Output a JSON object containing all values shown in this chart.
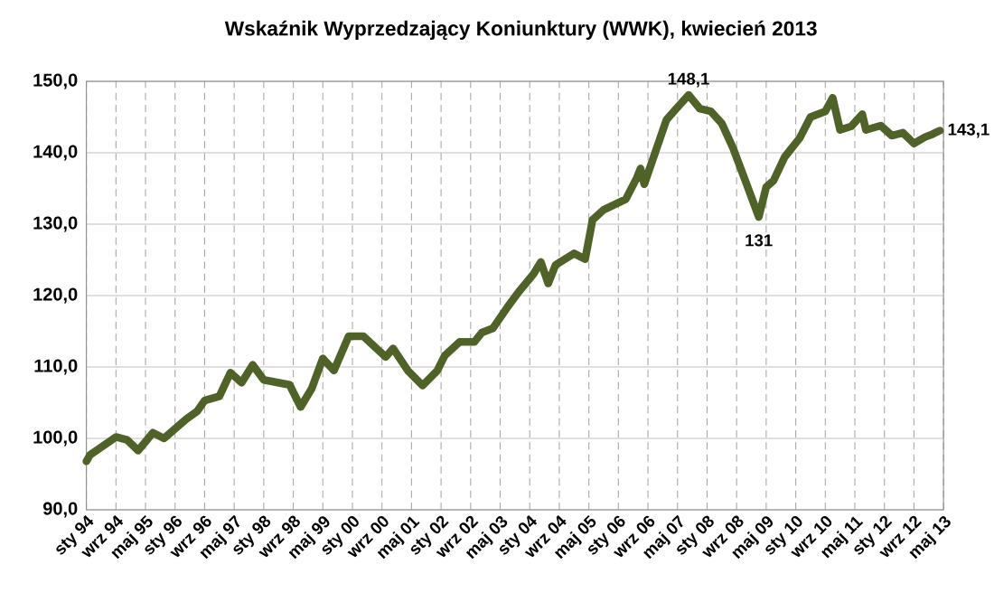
{
  "chart_data": {
    "type": "line",
    "title": "Wskaźnik Wyprzedzający Koniunktury (WWK), kwiecień 2013",
    "x": [
      "1994-01",
      "1994-02",
      "1994-09",
      "1994-12",
      "1995-03",
      "1995-07",
      "1995-10",
      "1996-04",
      "1996-07",
      "1996-09",
      "1997-01",
      "1997-04",
      "1997-07",
      "1997-10",
      "1998-01",
      "1998-08",
      "1998-11",
      "1999-02",
      "1999-05",
      "1999-08",
      "1999-12",
      "2000-04",
      "2000-10",
      "2000-12",
      "2001-04",
      "2001-08",
      "2001-12",
      "2002-02",
      "2002-06",
      "2002-10",
      "2002-12",
      "2003-03",
      "2003-07",
      "2003-10",
      "2004-02",
      "2004-04",
      "2004-06",
      "2004-08",
      "2005-01",
      "2005-04",
      "2005-06",
      "2005-09",
      "2006-03",
      "2006-06",
      "2006-07",
      "2006-08",
      "2007-02",
      "2007-04",
      "2007-08",
      "2007-11",
      "2008-02",
      "2008-05",
      "2008-08",
      "2008-12",
      "2009-03",
      "2009-05",
      "2009-07",
      "2009-10",
      "2010-02",
      "2010-05",
      "2010-09",
      "2010-11",
      "2011-01",
      "2011-04",
      "2011-07",
      "2011-08",
      "2011-12",
      "2012-03",
      "2012-06",
      "2012-09",
      "2012-12",
      "2013-02",
      "2013-04"
    ],
    "series": [
      {
        "color": "#4f6228",
        "values": [
          96.8,
          97.7,
          100.2,
          99.8,
          98.3,
          100.8,
          100.0,
          102.7,
          103.8,
          105.3,
          105.9,
          109.2,
          107.8,
          110.3,
          108.2,
          107.5,
          104.4,
          107.0,
          111.2,
          109.5,
          114.3,
          114.3,
          111.4,
          112.6,
          109.5,
          107.4,
          109.5,
          111.6,
          113.5,
          113.5,
          114.8,
          115.4,
          118.4,
          120.5,
          123.0,
          124.7,
          121.7,
          124.3,
          125.9,
          125.1,
          130.6,
          132.0,
          133.5,
          136.5,
          137.8,
          135.6,
          144.6,
          145.8,
          148.1,
          146.2,
          145.8,
          144.1,
          140.7,
          135.2,
          131,
          135.2,
          136.1,
          139.4,
          142.0,
          145.0,
          145.8,
          147.7,
          143.2,
          143.7,
          145.4,
          143.2,
          143.8,
          142.4,
          142.8,
          141.3,
          142.2,
          142.6,
          143.1
        ],
        "value_labels": [
          null,
          null,
          null,
          null,
          null,
          null,
          null,
          null,
          null,
          null,
          null,
          null,
          null,
          null,
          null,
          null,
          null,
          null,
          null,
          null,
          null,
          null,
          null,
          null,
          null,
          null,
          null,
          null,
          null,
          null,
          null,
          null,
          null,
          null,
          null,
          null,
          null,
          null,
          null,
          null,
          null,
          null,
          null,
          null,
          null,
          null,
          null,
          null,
          "148,1",
          null,
          null,
          null,
          null,
          null,
          "131",
          null,
          null,
          null,
          null,
          null,
          null,
          null,
          null,
          null,
          null,
          null,
          null,
          null,
          null,
          null,
          null,
          null,
          "143,1"
        ]
      }
    ],
    "xlim": [
      "1994-01",
      "2013-05"
    ],
    "xticks": [
      {
        "value": "1994-01",
        "label": "sty 94"
      },
      {
        "value": "1994-09",
        "label": "wrz 94"
      },
      {
        "value": "1995-05",
        "label": "maj 95"
      },
      {
        "value": "1996-01",
        "label": "sty 96"
      },
      {
        "value": "1996-09",
        "label": "wrz 96"
      },
      {
        "value": "1997-05",
        "label": "maj 97"
      },
      {
        "value": "1998-01",
        "label": "sty 98"
      },
      {
        "value": "1998-09",
        "label": "wrz 98"
      },
      {
        "value": "1999-05",
        "label": "maj 99"
      },
      {
        "value": "2000-01",
        "label": "sty 00"
      },
      {
        "value": "2000-09",
        "label": "wrz 00"
      },
      {
        "value": "2001-05",
        "label": "maj 01"
      },
      {
        "value": "2002-01",
        "label": "sty 02"
      },
      {
        "value": "2002-09",
        "label": "wrz 02"
      },
      {
        "value": "2003-05",
        "label": "maj 03"
      },
      {
        "value": "2004-01",
        "label": "sty 04"
      },
      {
        "value": "2004-09",
        "label": "wrz 04"
      },
      {
        "value": "2005-05",
        "label": "maj 05"
      },
      {
        "value": "2006-01",
        "label": "sty 06"
      },
      {
        "value": "2006-09",
        "label": "wrz 06"
      },
      {
        "value": "2007-05",
        "label": "maj 07"
      },
      {
        "value": "2008-01",
        "label": "sty 08"
      },
      {
        "value": "2008-09",
        "label": "wrz 08"
      },
      {
        "value": "2009-05",
        "label": "maj 09"
      },
      {
        "value": "2010-01",
        "label": "sty 10"
      },
      {
        "value": "2010-09",
        "label": "wrz 10"
      },
      {
        "value": "2011-05",
        "label": "maj 11"
      },
      {
        "value": "2012-01",
        "label": "sty 12"
      },
      {
        "value": "2012-09",
        "label": "wrz 12"
      },
      {
        "value": "2013-05",
        "label": "maj 13"
      }
    ],
    "ylim": [
      90,
      150
    ],
    "yticks": [
      {
        "value": 90,
        "label": "90,0"
      },
      {
        "value": 100,
        "label": "100,0"
      },
      {
        "value": 110,
        "label": "110,0"
      },
      {
        "value": 120,
        "label": "120,0"
      },
      {
        "value": 130,
        "label": "130,0"
      },
      {
        "value": 140,
        "label": "140,0"
      },
      {
        "value": 150,
        "label": "150,0"
      }
    ],
    "grid": true,
    "legend": false,
    "marker": "none",
    "line_style": "solid"
  }
}
